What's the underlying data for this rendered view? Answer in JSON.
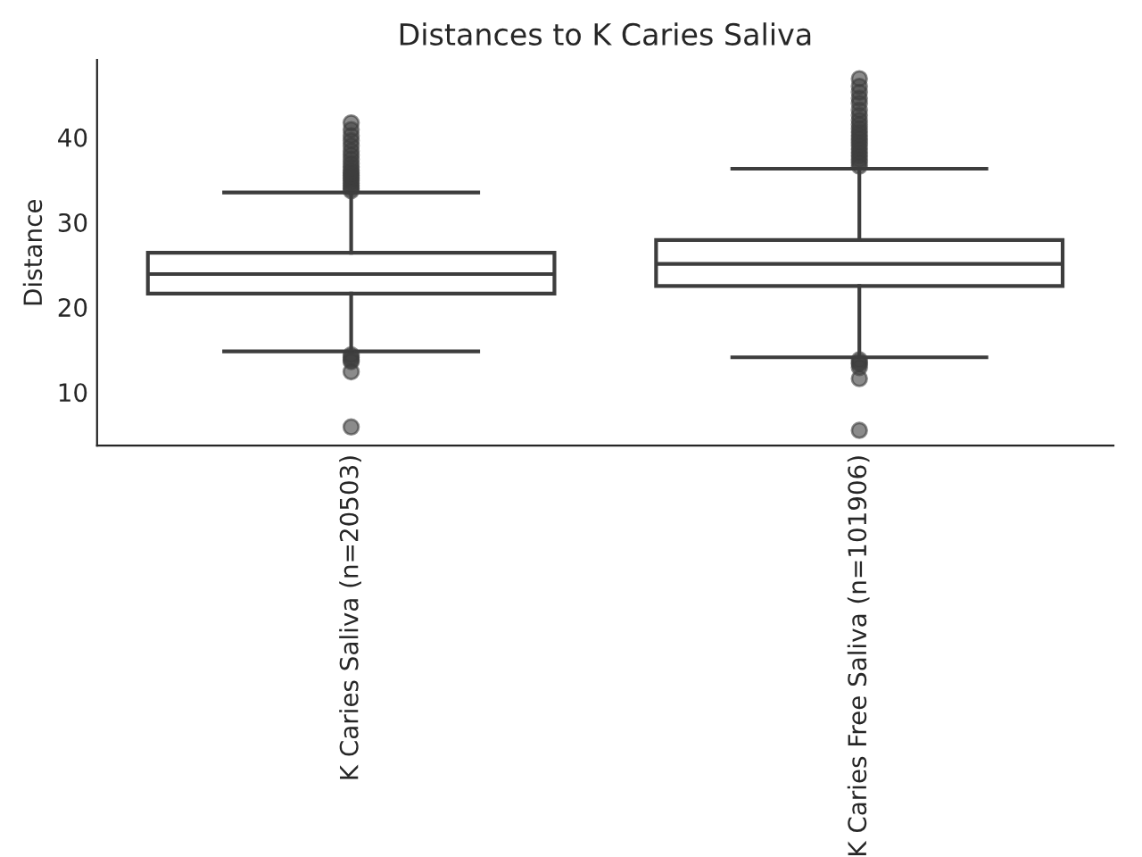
{
  "chart_data": {
    "type": "box",
    "title": "Distances to K Caries Saliva",
    "ylabel": "Distance",
    "categories": [
      "K Caries Saliva (n=20503)",
      "K Caries Free Saliva (n=101906)"
    ],
    "boxes": [
      {
        "low": 14.8,
        "q1": 21.6,
        "median": 23.9,
        "q3": 26.4,
        "high": 33.5,
        "outliers": [
          33.7,
          34.0,
          34.3,
          34.6,
          34.9,
          35.2,
          35.5,
          35.8,
          36.1,
          36.5,
          36.9,
          37.4,
          37.9,
          38.4,
          39.0,
          39.6,
          40.2,
          40.9,
          41.7,
          14.4,
          14.1,
          13.8,
          13.6,
          12.4,
          5.9
        ]
      },
      {
        "low": 14.1,
        "q1": 22.5,
        "median": 25.1,
        "q3": 27.9,
        "high": 36.3,
        "outliers": [
          36.6,
          37.0,
          37.4,
          37.8,
          38.2,
          38.6,
          39.0,
          39.4,
          39.8,
          40.2,
          40.6,
          41.0,
          41.5,
          42.0,
          42.6,
          43.2,
          44.0,
          44.6,
          45.3,
          46.0,
          46.9,
          13.8,
          13.5,
          13.3,
          12.9,
          11.6,
          5.5
        ]
      }
    ],
    "color": "#ffffff",
    "ylim": [
      3.7,
      49.1
    ],
    "yticks": [
      10,
      20,
      30,
      40
    ],
    "grid": false
  }
}
